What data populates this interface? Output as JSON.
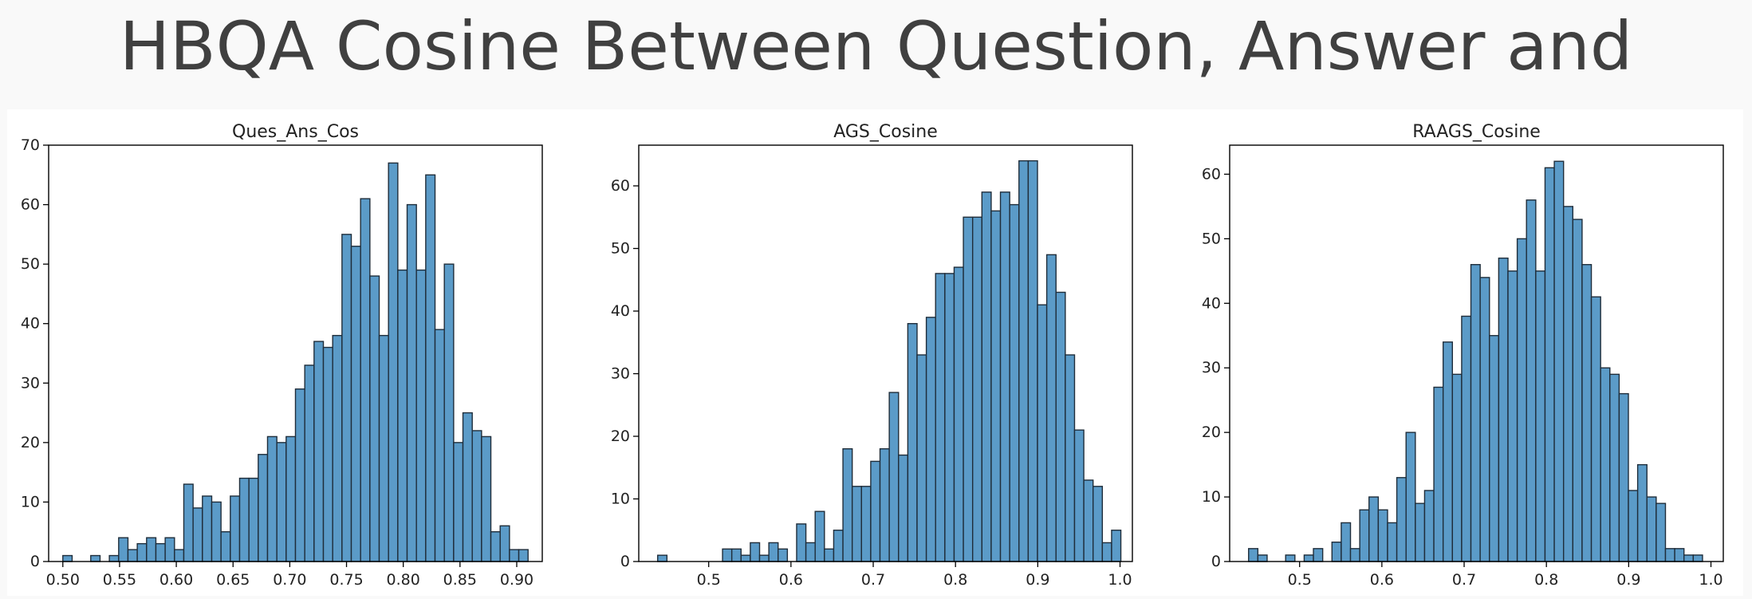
{
  "page": {
    "title": "HBQA Cosine Between Question, Answer and Prediction"
  },
  "colors": {
    "bar_fill": "#5b9bc8",
    "bar_edge": "#1f2d3a",
    "axis": "#000000",
    "background": "#f9f9f9"
  },
  "chart_data": [
    {
      "type": "bar",
      "title": "Ques_Ans_Cos",
      "xlim": [
        0.4875,
        0.9225
      ],
      "ylim": [
        0,
        70
      ],
      "xticks": [
        0.5,
        0.55,
        0.6,
        0.65,
        0.7,
        0.75,
        0.8,
        0.85,
        0.9
      ],
      "xtick_labels": [
        "0.50",
        "0.55",
        "0.60",
        "0.65",
        "0.70",
        "0.75",
        "0.80",
        "0.85",
        "0.90"
      ],
      "yticks": [
        0,
        10,
        20,
        30,
        40,
        50,
        60,
        70
      ],
      "ytick_labels": [
        "0",
        "10",
        "20",
        "30",
        "40",
        "50",
        "60",
        "70"
      ],
      "bin_start": 0.5,
      "bin_width": 0.0082,
      "values": [
        1,
        0,
        0,
        1,
        0,
        1,
        4,
        2,
        3,
        4,
        3,
        4,
        2,
        13,
        9,
        11,
        10,
        5,
        11,
        14,
        14,
        18,
        21,
        20,
        21,
        29,
        33,
        37,
        36,
        38,
        55,
        53,
        61,
        48,
        38,
        67,
        49,
        60,
        49,
        65,
        39,
        50,
        20,
        25,
        22,
        21,
        5,
        6,
        2,
        2
      ]
    },
    {
      "type": "bar",
      "title": "AGS_Cosine",
      "xlim": [
        0.415,
        1.015
      ],
      "ylim": [
        0,
        66.5
      ],
      "xticks": [
        0.5,
        0.6,
        0.7,
        0.8,
        0.9,
        1.0
      ],
      "xtick_labels": [
        "0.5",
        "0.6",
        "0.7",
        "0.8",
        "0.9",
        "1.0"
      ],
      "yticks": [
        0,
        10,
        20,
        30,
        40,
        50,
        60
      ],
      "ytick_labels": [
        "0",
        "10",
        "20",
        "30",
        "40",
        "50",
        "60"
      ],
      "bin_start": 0.438,
      "bin_width": 0.01126,
      "values": [
        1,
        0,
        0,
        0,
        0,
        0,
        0,
        2,
        2,
        1,
        3,
        1,
        3,
        2,
        0,
        6,
        3,
        8,
        2,
        5,
        18,
        12,
        12,
        16,
        18,
        27,
        17,
        38,
        33,
        39,
        46,
        46,
        47,
        55,
        55,
        59,
        56,
        59,
        57,
        64,
        64,
        41,
        49,
        43,
        33,
        21,
        13,
        12,
        3,
        5
      ]
    },
    {
      "type": "bar",
      "title": "RAAGS_Cosine",
      "xlim": [
        0.415,
        1.015
      ],
      "ylim": [
        0,
        64.5
      ],
      "xticks": [
        0.5,
        0.6,
        0.7,
        0.8,
        0.9,
        1.0
      ],
      "xtick_labels": [
        "0.5",
        "0.6",
        "0.7",
        "0.8",
        "0.9",
        "1.0"
      ],
      "yticks": [
        0,
        10,
        20,
        30,
        40,
        50,
        60
      ],
      "ytick_labels": [
        "0",
        "10",
        "20",
        "30",
        "40",
        "50",
        "60"
      ],
      "bin_start": 0.438,
      "bin_width": 0.01126,
      "values": [
        2,
        1,
        0,
        0,
        1,
        0,
        1,
        2,
        0,
        3,
        6,
        2,
        8,
        10,
        8,
        6,
        13,
        20,
        9,
        11,
        27,
        34,
        29,
        38,
        46,
        44,
        35,
        47,
        45,
        50,
        56,
        45,
        61,
        62,
        55,
        53,
        46,
        41,
        30,
        29,
        26,
        11,
        15,
        10,
        9,
        2,
        2,
        1,
        1,
        0
      ]
    }
  ]
}
